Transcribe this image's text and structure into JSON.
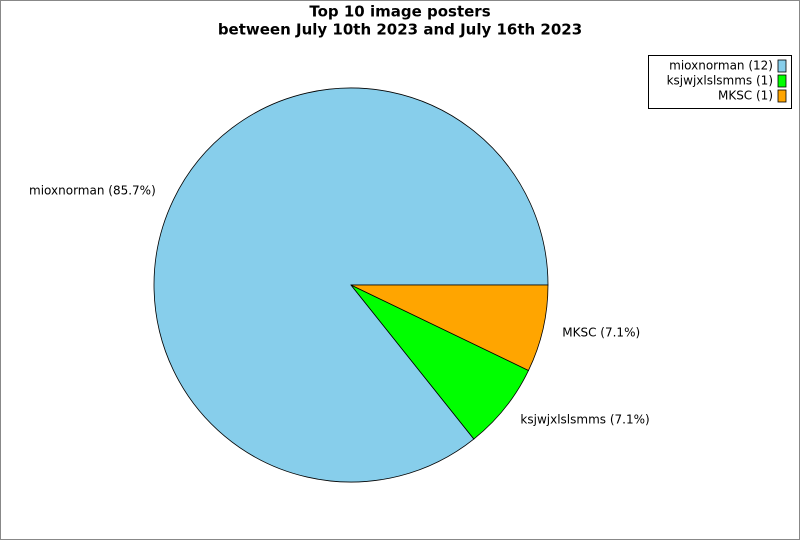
{
  "chart_data": {
    "type": "pie",
    "title": [
      "Top 10 image posters",
      "between July 10th 2023 and July 16th 2023"
    ],
    "values": [
      12,
      1,
      1
    ],
    "value_labels": [
      "mioxnorman (85.7%)",
      "ksjwjxlslsmms (7.1%)",
      "MKSC (7.1%)"
    ],
    "legend": [
      "mioxnorman (12)",
      "ksjwjxlslsmms (1)",
      "MKSC (1)"
    ],
    "colors": [
      "#87ceeb",
      "#00ff00",
      "#ffa500"
    ],
    "legend_position": "upper right"
  }
}
